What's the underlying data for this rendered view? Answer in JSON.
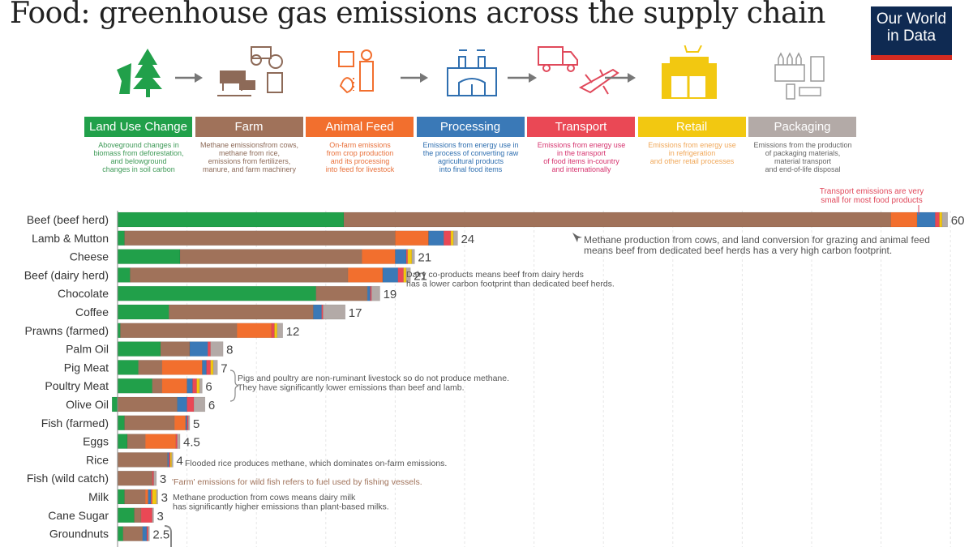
{
  "header": {
    "title": "Food: greenhouse gas emissions across the supply chain",
    "logo_line1": "Our World",
    "logo_line2": "in Data"
  },
  "icons": [
    "land-use-tree-stump-icon",
    "farm-animals-tractor-icon",
    "animal-feed-farmer-icon",
    "processing-factory-icon",
    "transport-truck-plane-icon",
    "retail-store-cart-icon",
    "packaging-bottles-icon"
  ],
  "stages": [
    {
      "key": "land",
      "label": "Land Use Change",
      "color": "#21a04a",
      "desc_color": "#3e9a57",
      "desc": [
        "Aboveground changes in",
        "biomass from  deforestation,",
        "and belowground",
        "changes in soil carbon"
      ]
    },
    {
      "key": "farm",
      "label": "Farm",
      "color": "#a0725a",
      "desc_color": "#8d6a58",
      "desc": [
        "Methane emissionsfrom cows,",
        "methane from rice,",
        "emissions from fertilizers,",
        "manure, and farm machinery"
      ]
    },
    {
      "key": "feed",
      "label": "Animal Feed",
      "color": "#f26f2e",
      "desc_color": "#e8703a",
      "desc": [
        "On-farm emissions",
        "from crop production",
        "and its processing",
        "into feed for livestock"
      ]
    },
    {
      "key": "processing",
      "label": "Processing",
      "color": "#3a79b7",
      "desc_color": "#2f6fb0",
      "desc": [
        "Emissions from energy use in",
        "the process of converting raw",
        "agricultural products",
        "into final food items"
      ]
    },
    {
      "key": "transport",
      "label": "Transport",
      "color": "#ea4855",
      "desc_color": "#d6336e",
      "desc": [
        "Emissions from energy use",
        "in the transport",
        "of food items in-country",
        "and internationally"
      ]
    },
    {
      "key": "retail",
      "label": "Retail",
      "color": "#f2c811",
      "desc_color": "#f0a85a",
      "desc": [
        "Emissions from energy use",
        "in refrigeration",
        "and other retail processes"
      ]
    },
    {
      "key": "packaging",
      "label": "Packaging",
      "color": "#b3aaa7",
      "desc_color": "#666666",
      "desc": [
        "Emissions from the production",
        "of packaging materials,",
        "material transport",
        "and end-of-life disposal"
      ]
    }
  ],
  "chart_data": {
    "type": "bar",
    "orientation": "horizontal",
    "stacked": true,
    "title": "Food: greenhouse gas emissions across the supply chain",
    "xlabel": "",
    "ylabel": "",
    "xlim": [
      0,
      60
    ],
    "grid": true,
    "grid_step": 5,
    "categories": [
      "Beef (beef herd)",
      "Lamb & Mutton",
      "Cheese",
      "Beef (dairy herd)",
      "Chocolate",
      "Coffee",
      "Prawns (farmed)",
      "Palm Oil",
      "Pig Meat",
      "Poultry Meat",
      "Olive Oil",
      "Fish (farmed)",
      "Eggs",
      "Rice",
      "Fish (wild catch)",
      "Milk",
      "Cane Sugar",
      "Groundnuts"
    ],
    "totals_labels": [
      "60",
      "24",
      "21",
      "21",
      "19",
      "17",
      "12",
      "8",
      "7",
      "6",
      "6",
      "5",
      "4.5",
      "4",
      "3",
      "3",
      "3",
      "2.5"
    ],
    "series": [
      {
        "name": "Land Use Change",
        "values": [
          16.3,
          0.5,
          4.5,
          0.9,
          14.3,
          3.7,
          0.2,
          3.1,
          1.5,
          2.5,
          -0.4,
          0.5,
          0.7,
          0.0,
          0.0,
          0.5,
          1.2,
          0.4
        ]
      },
      {
        "name": "Farm",
        "values": [
          39.4,
          19.5,
          13.1,
          15.7,
          3.7,
          10.4,
          8.4,
          2.1,
          1.7,
          0.7,
          4.3,
          3.6,
          1.3,
          3.6,
          2.5,
          1.5,
          0.5,
          1.4
        ]
      },
      {
        "name": "Animal Feed",
        "values": [
          1.9,
          2.4,
          2.4,
          2.5,
          0.0,
          0.0,
          2.5,
          0.0,
          2.9,
          1.8,
          0.0,
          0.8,
          2.2,
          0.0,
          0.0,
          0.2,
          0.0,
          0.0
        ]
      },
      {
        "name": "Processing",
        "values": [
          1.3,
          1.1,
          0.8,
          1.1,
          0.2,
          0.6,
          0.0,
          1.3,
          0.3,
          0.4,
          0.7,
          0.1,
          0.0,
          0.1,
          0.0,
          0.2,
          0.0,
          0.3
        ]
      },
      {
        "name": "Transport",
        "values": [
          0.3,
          0.5,
          0.1,
          0.4,
          0.1,
          0.1,
          0.2,
          0.2,
          0.3,
          0.3,
          0.5,
          0.1,
          0.1,
          0.1,
          0.1,
          0.1,
          0.8,
          0.1
        ]
      },
      {
        "name": "Retail",
        "values": [
          0.2,
          0.2,
          0.3,
          0.2,
          0.0,
          0.0,
          0.2,
          0.0,
          0.2,
          0.2,
          0.0,
          0.0,
          0.0,
          0.1,
          0.0,
          0.3,
          0.0,
          0.0
        ]
      },
      {
        "name": "Packaging",
        "values": [
          0.4,
          0.3,
          0.2,
          0.3,
          0.6,
          1.6,
          0.4,
          0.9,
          0.3,
          0.2,
          0.8,
          0.1,
          0.2,
          0.1,
          0.2,
          0.1,
          0.1,
          0.1
        ]
      }
    ],
    "annotations": [
      {
        "row": 0,
        "color": "#e0495b",
        "lines": [
          "Transport emissions are very",
          "small for most food products"
        ]
      },
      {
        "row": 0,
        "color": "#555555",
        "lines": [
          "Methane production from cows, and land conversion for grazing and animal feed",
          "means beef from dedicated beef herds has a very high carbon footprint."
        ]
      },
      {
        "row": 3,
        "color": "#555555",
        "lines": [
          "Dairy co-products means beef from dairy herds",
          "has a lower carbon footprint than dedicated beef herds."
        ]
      },
      {
        "row": 8,
        "color": "#555555",
        "lines": [
          "Pigs and poultry are non-ruminant livestock so do not produce methane.",
          "They have significantly lower emissions than beef and lamb."
        ]
      },
      {
        "row": 13,
        "color": "#555555",
        "lines": [
          "Flooded rice produces methane, which dominates on-farm emissions."
        ]
      },
      {
        "row": 14,
        "color": "#a0725a",
        "lines": [
          "'Farm' emissions for wild fish refers to fuel used by fishing vessels."
        ]
      },
      {
        "row": 15,
        "color": "#555555",
        "lines": [
          "Methane production from cows means dairy milk",
          "has significantly higher emissions than plant-based milks."
        ]
      }
    ]
  }
}
